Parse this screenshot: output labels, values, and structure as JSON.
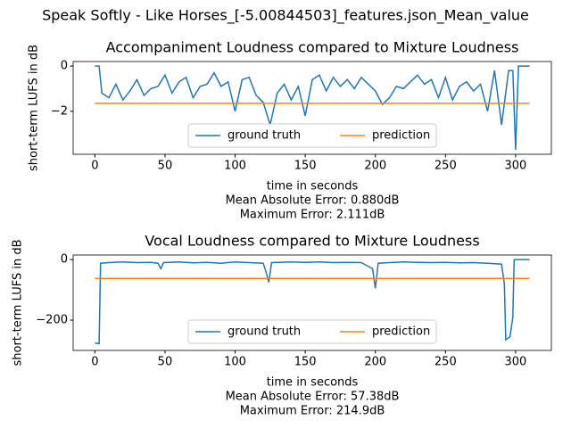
{
  "title": "Speak Softly - Like Horses_[-5.00844503]_features.json_Mean_value",
  "chart_data": [
    {
      "type": "line",
      "title": "Accompaniment Loudness compared to Mixture Loudness",
      "xlabel": "time in seconds",
      "ylabel": "short-term LUFS in dB",
      "annotations": [
        "Mean Absolute Error: 0.880dB",
        "Maximum Error: 2.111dB"
      ],
      "xlim": [
        -15.5,
        325.5
      ],
      "xticks": [
        0,
        50,
        100,
        150,
        200,
        250,
        300
      ],
      "ylim": [
        -3.9,
        0.2
      ],
      "yticks": [
        {
          "value": -2,
          "label": "−2"
        },
        0
      ],
      "legend": "lower center",
      "series": [
        {
          "name": "ground truth",
          "color": "#1f77b4",
          "x": [
            0,
            3,
            5,
            10,
            15,
            20,
            25,
            30,
            35,
            40,
            45,
            50,
            55,
            60,
            65,
            70,
            75,
            80,
            85,
            90,
            95,
            100,
            105,
            110,
            115,
            120,
            125,
            130,
            135,
            140,
            145,
            150,
            155,
            160,
            165,
            170,
            175,
            180,
            185,
            190,
            195,
            200,
            205,
            210,
            215,
            220,
            225,
            230,
            235,
            240,
            245,
            250,
            255,
            260,
            265,
            270,
            275,
            280,
            285,
            290,
            295,
            298,
            300,
            302,
            310
          ],
          "values": [
            0,
            0,
            -1.2,
            -1.4,
            -0.8,
            -1.5,
            -1.1,
            -0.6,
            -1.3,
            -1.0,
            -0.9,
            -0.4,
            -1.2,
            -0.7,
            -0.5,
            -1.4,
            -0.9,
            -0.8,
            -0.3,
            -0.9,
            -0.7,
            -2.0,
            -0.6,
            -0.5,
            -1.3,
            -1.6,
            -2.6,
            -1.2,
            -0.8,
            -1.5,
            -0.9,
            -2.2,
            -0.6,
            -0.4,
            -1.1,
            -0.5,
            -0.9,
            -0.6,
            -1.0,
            -0.5,
            -0.8,
            -1.1,
            -1.7,
            -1.4,
            -0.9,
            -1.0,
            -0.7,
            -0.4,
            -0.8,
            -0.6,
            -1.4,
            -0.5,
            -1.5,
            -0.9,
            -0.7,
            -1.1,
            -0.8,
            -2.0,
            -0.2,
            -2.6,
            -0.2,
            -0.2,
            -3.7,
            0,
            0
          ]
        },
        {
          "name": "prediction",
          "color": "#ff7f0e",
          "x": [
            0,
            310
          ],
          "values": [
            -1.65,
            -1.65
          ]
        }
      ]
    },
    {
      "type": "line",
      "title": "Vocal Loudness compared to Mixture Loudness",
      "xlabel": "time in seconds",
      "ylabel": "short-term LUFS in dB",
      "annotations": [
        "Mean Absolute Error: 57.38dB",
        "Maximum Error: 214.9dB"
      ],
      "xlim": [
        -15.5,
        325.5
      ],
      "xticks": [
        0,
        50,
        100,
        150,
        200,
        250,
        300
      ],
      "ylim": [
        -300,
        15
      ],
      "yticks": [
        {
          "value": -200,
          "label": "−200"
        },
        0
      ],
      "legend": "lower center",
      "series": [
        {
          "name": "ground truth",
          "color": "#1f77b4",
          "x": [
            0,
            3,
            4,
            10,
            20,
            30,
            40,
            45,
            47,
            49,
            60,
            70,
            80,
            90,
            100,
            110,
            120,
            122,
            124,
            126,
            140,
            150,
            160,
            170,
            180,
            190,
            198,
            200,
            202,
            210,
            220,
            230,
            240,
            250,
            260,
            270,
            280,
            290,
            292,
            293,
            296,
            298,
            299,
            310
          ],
          "values": [
            -275,
            -278,
            -12,
            -10,
            -8,
            -10,
            -9,
            -12,
            -30,
            -10,
            -8,
            -11,
            -9,
            -12,
            -8,
            -10,
            -12,
            -40,
            -75,
            -10,
            -8,
            -9,
            -8,
            -10,
            -9,
            -10,
            -30,
            -95,
            -12,
            -10,
            -8,
            -9,
            -10,
            -9,
            -11,
            -10,
            -12,
            -15,
            -80,
            -265,
            -255,
            -190,
            0,
            0
          ]
        },
        {
          "name": "prediction",
          "color": "#ff7f0e",
          "x": [
            0,
            310
          ],
          "values": [
            -62,
            -62
          ]
        }
      ]
    }
  ]
}
